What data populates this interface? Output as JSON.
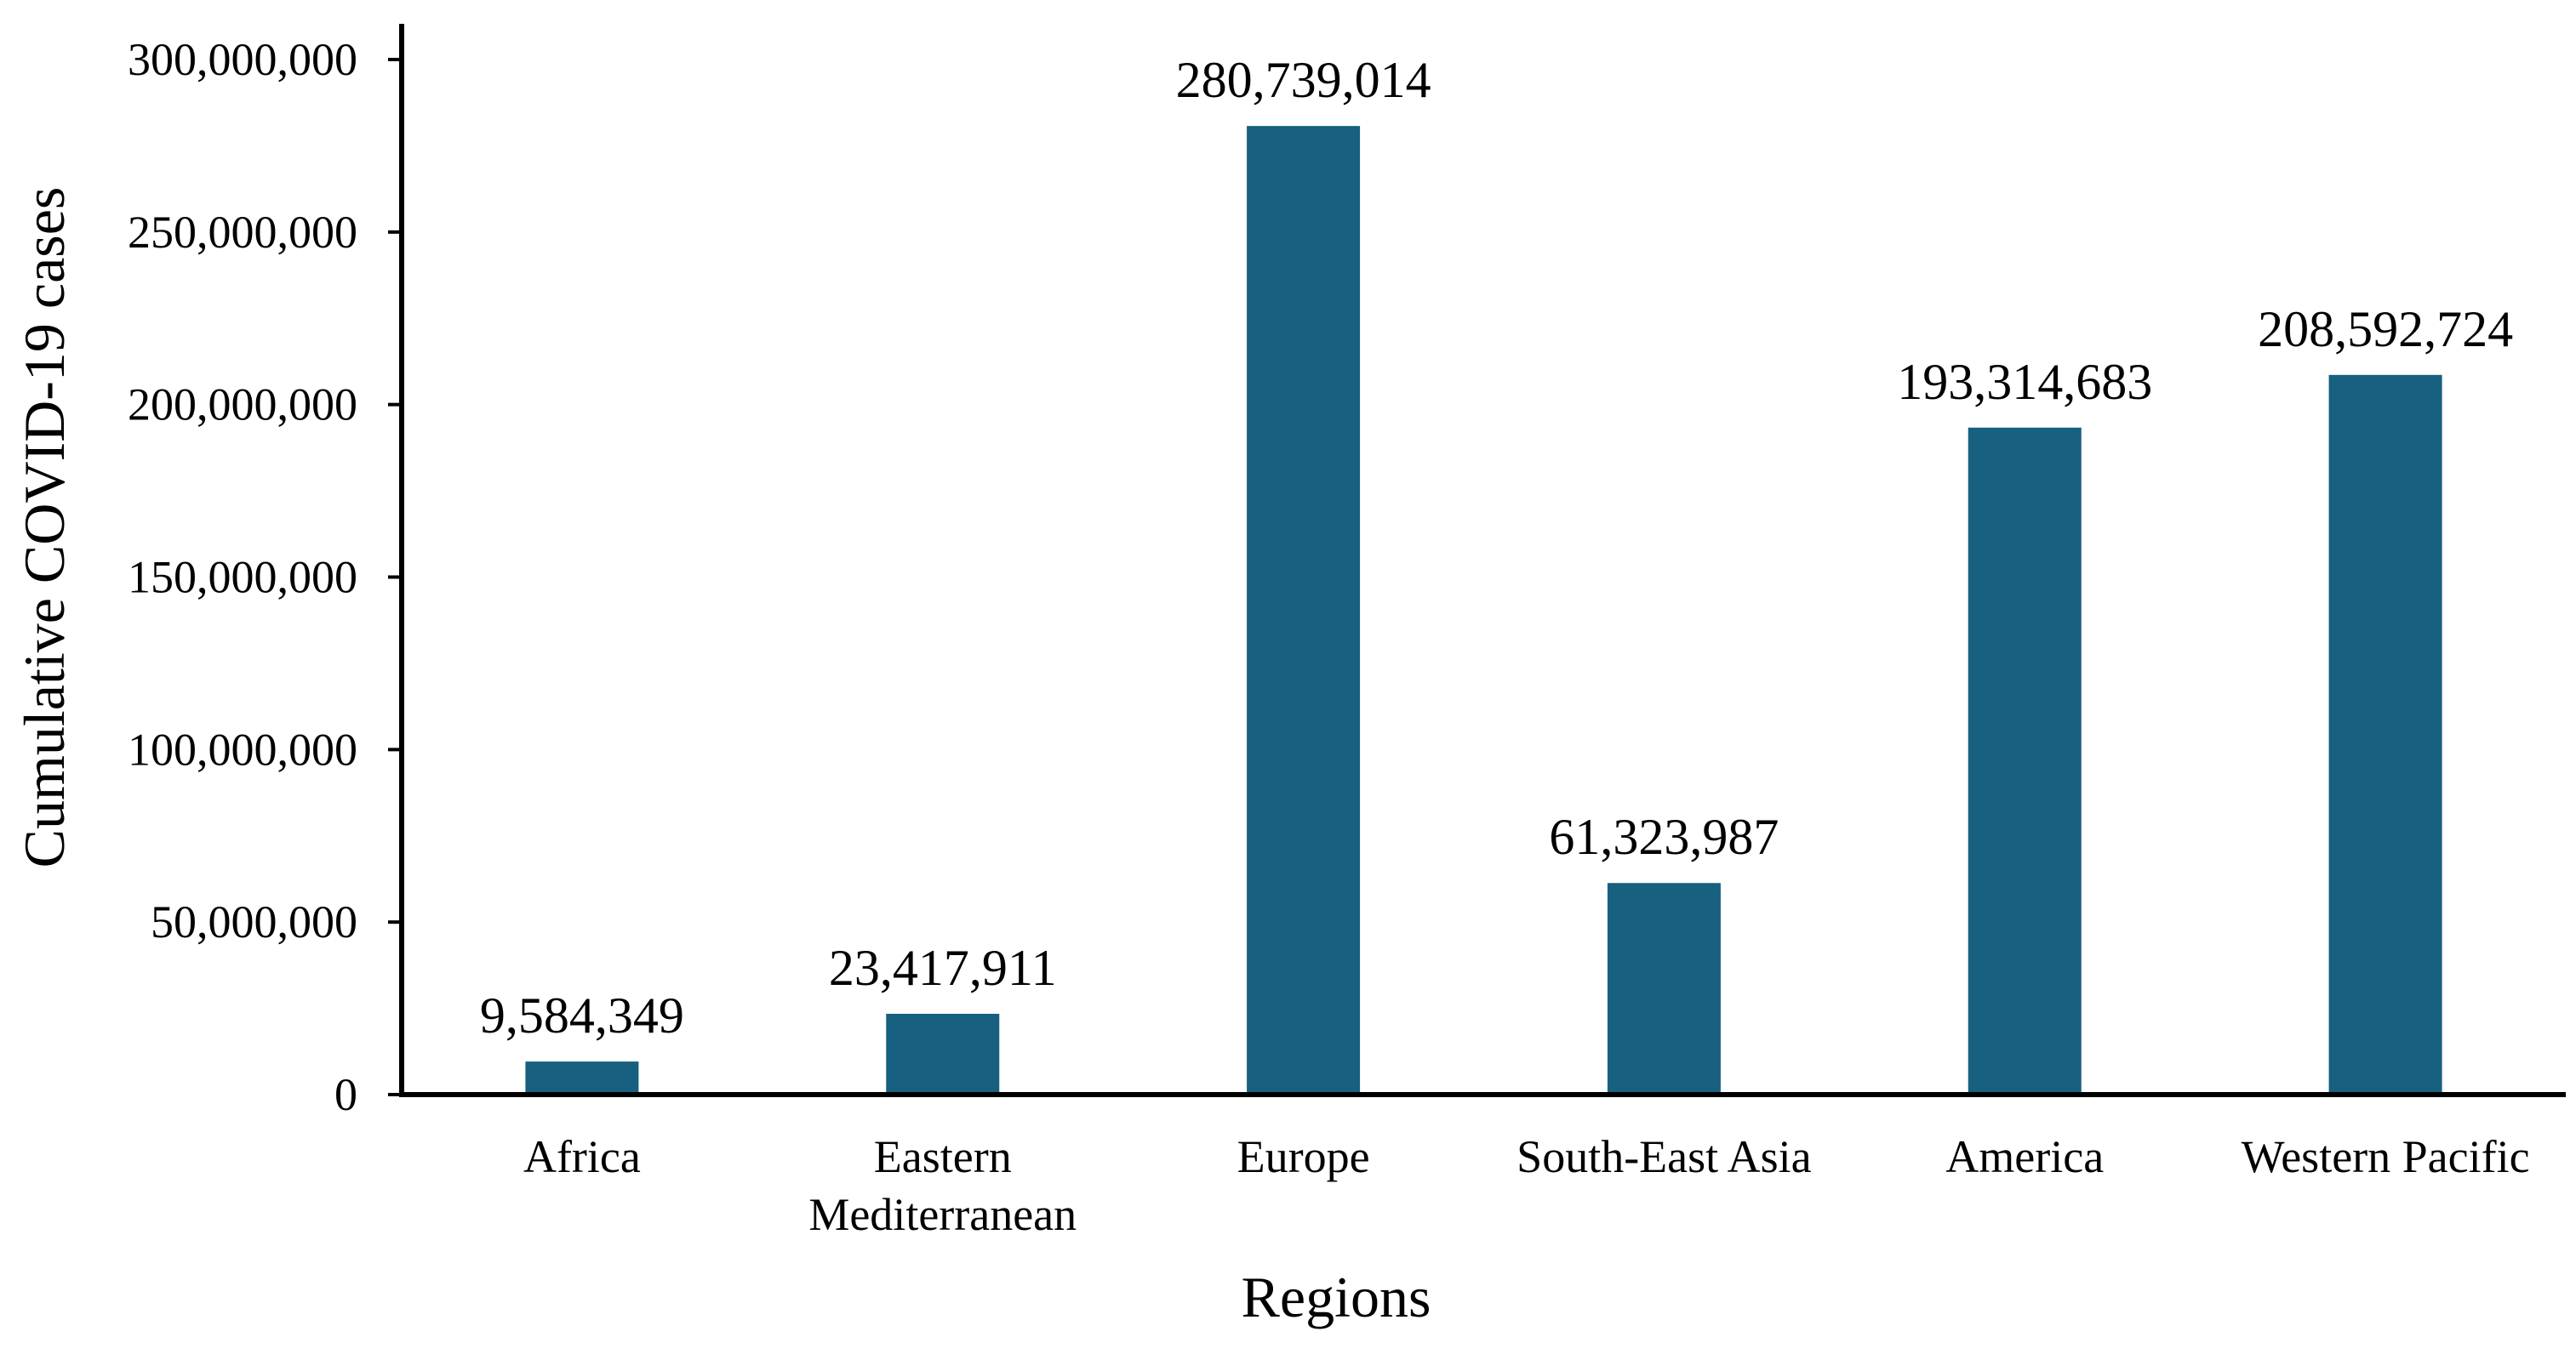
{
  "chart_data": {
    "type": "bar",
    "title": "",
    "xlabel": "Regions",
    "ylabel": "Cumulative COVID-19 cases",
    "categories": [
      [
        "Africa"
      ],
      [
        "Eastern",
        "Mediterranean"
      ],
      [
        "Europe"
      ],
      [
        "South-East Asia"
      ],
      [
        "America"
      ],
      [
        "Western Pacific"
      ]
    ],
    "values": [
      9584349,
      23417911,
      280739014,
      61323987,
      193314683,
      208592724
    ],
    "data_labels": [
      "9,584,349",
      "23,417,911",
      "280,739,014",
      "61,323,987",
      "193,314,683",
      "208,592,724"
    ],
    "yticks": [
      0,
      50000000,
      100000000,
      150000000,
      200000000,
      250000000,
      300000000
    ],
    "ytick_labels": [
      "0",
      "50,000,000",
      "100,000,000",
      "150,000,000",
      "200,000,000",
      "250,000,000",
      "300,000,000"
    ],
    "ylim": [
      0,
      300000000
    ],
    "grid": false,
    "legend": "none",
    "bar_color": "#17607f",
    "axis_color": "#000000"
  }
}
